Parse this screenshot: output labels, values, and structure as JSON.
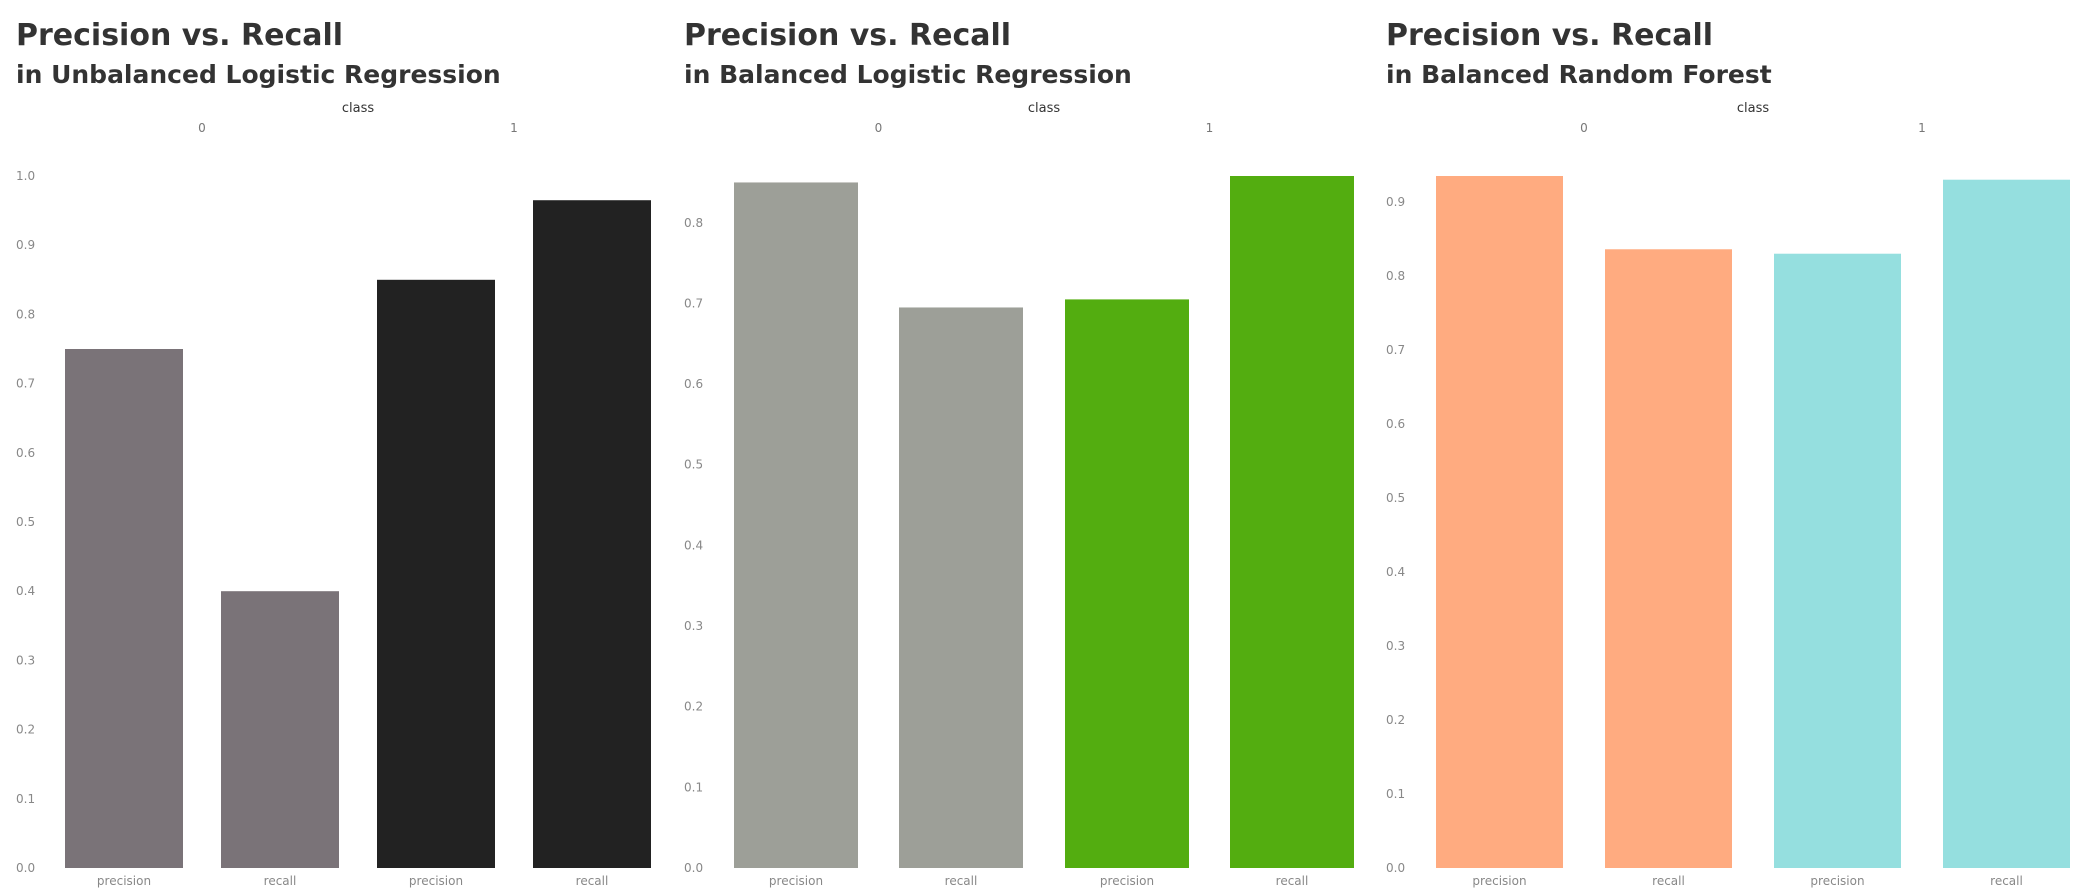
{
  "chart_data": [
    {
      "type": "bar",
      "title": "Precision vs. Recall",
      "subtitle": "in Unbalanced Logistic Regression",
      "column_header": "class",
      "groups": [
        "0",
        "1"
      ],
      "categories": [
        "precision",
        "recall",
        "precision",
        "recall"
      ],
      "values": [
        0.75,
        0.4,
        0.85,
        0.965
      ],
      "ylim": [
        0,
        1.0
      ],
      "yticks": [
        0.0,
        0.1,
        0.2,
        0.3,
        0.4,
        0.5,
        0.6,
        0.7,
        0.8,
        0.9,
        1.0
      ],
      "colors": [
        "#7a7378",
        "#7a7378",
        "#222222",
        "#222222"
      ],
      "grid": false
    },
    {
      "type": "bar",
      "title": "Precision vs. Recall",
      "subtitle": "in Balanced Logistic Regression",
      "column_header": "class",
      "groups": [
        "0",
        "1"
      ],
      "categories": [
        "precision",
        "recall",
        "precision",
        "recall"
      ],
      "values": [
        0.85,
        0.695,
        0.705,
        0.858
      ],
      "ylim": [
        0,
        0.858
      ],
      "yticks": [
        0.0,
        0.1,
        0.2,
        0.3,
        0.4,
        0.5,
        0.6,
        0.7,
        0.8
      ],
      "colors": [
        "#9d9f98",
        "#9d9f98",
        "#53ad10",
        "#53ad10"
      ],
      "grid": false
    },
    {
      "type": "bar",
      "title": "Precision vs. Recall",
      "subtitle": "in Balanced Random Forest",
      "column_header": "class",
      "groups": [
        "0",
        "1"
      ],
      "categories": [
        "precision",
        "recall",
        "precision",
        "recall"
      ],
      "values": [
        0.935,
        0.836,
        0.83,
        0.93
      ],
      "ylim": [
        0,
        0.935
      ],
      "yticks": [
        0.0,
        0.1,
        0.2,
        0.3,
        0.4,
        0.5,
        0.6,
        0.7,
        0.8,
        0.9
      ],
      "colors": [
        "#ffab80",
        "#ffab80",
        "#95dfdf",
        "#95dfdf"
      ],
      "grid": false
    }
  ]
}
